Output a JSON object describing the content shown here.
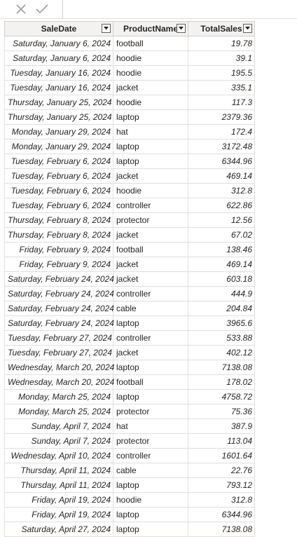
{
  "formula_bar": {
    "cancel_icon": "close-icon",
    "commit_icon": "check-icon"
  },
  "table": {
    "columns": [
      "SaleDate",
      "ProductName",
      "TotalSales"
    ],
    "rows": [
      [
        "Saturday, January 6, 2024",
        "football",
        "19.78"
      ],
      [
        "Saturday, January 6, 2024",
        "hoodie",
        "39.1"
      ],
      [
        "Tuesday, January 16, 2024",
        "hoodie",
        "195.5"
      ],
      [
        "Tuesday, January 16, 2024",
        "jacket",
        "335.1"
      ],
      [
        "Thursday, January 25, 2024",
        "hoodie",
        "117.3"
      ],
      [
        "Thursday, January 25, 2024",
        "laptop",
        "2379.36"
      ],
      [
        "Monday, January 29, 2024",
        "hat",
        "172.4"
      ],
      [
        "Monday, January 29, 2024",
        "laptop",
        "3172.48"
      ],
      [
        "Tuesday, February 6, 2024",
        "laptop",
        "6344.96"
      ],
      [
        "Tuesday, February 6, 2024",
        "jacket",
        "469.14"
      ],
      [
        "Tuesday, February 6, 2024",
        "hoodie",
        "312.8"
      ],
      [
        "Tuesday, February 6, 2024",
        "controller",
        "622.86"
      ],
      [
        "Thursday, February 8, 2024",
        "protector",
        "12.56"
      ],
      [
        "Thursday, February 8, 2024",
        "jacket",
        "67.02"
      ],
      [
        "Friday, February 9, 2024",
        "football",
        "138.46"
      ],
      [
        "Friday, February 9, 2024",
        "jacket",
        "469.14"
      ],
      [
        "Saturday, February 24, 2024",
        "jacket",
        "603.18"
      ],
      [
        "Saturday, February 24, 2024",
        "controller",
        "444.9"
      ],
      [
        "Saturday, February 24, 2024",
        "cable",
        "204.84"
      ],
      [
        "Saturday, February 24, 2024",
        "laptop",
        "3965.6"
      ],
      [
        "Tuesday, February 27, 2024",
        "controller",
        "533.88"
      ],
      [
        "Tuesday, February 27, 2024",
        "jacket",
        "402.12"
      ],
      [
        "Wednesday, March 20, 2024",
        "laptop",
        "7138.08"
      ],
      [
        "Wednesday, March 20, 2024",
        "football",
        "178.02"
      ],
      [
        "Monday, March 25, 2024",
        "laptop",
        "4758.72"
      ],
      [
        "Monday, March 25, 2024",
        "protector",
        "75.36"
      ],
      [
        "Sunday, April 7, 2024",
        "hat",
        "387.9"
      ],
      [
        "Sunday, April 7, 2024",
        "protector",
        "113.04"
      ],
      [
        "Wednesday, April 10, 2024",
        "controller",
        "1601.64"
      ],
      [
        "Thursday, April 11, 2024",
        "cable",
        "22.76"
      ],
      [
        "Thursday, April 11, 2024",
        "laptop",
        "793.12"
      ],
      [
        "Friday, April 19, 2024",
        "hoodie",
        "312.8"
      ],
      [
        "Friday, April 19, 2024",
        "laptop",
        "6344.96"
      ],
      [
        "Saturday, April 27, 2024",
        "laptop",
        "7138.08"
      ]
    ]
  }
}
